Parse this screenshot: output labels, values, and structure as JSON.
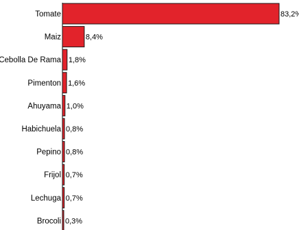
{
  "colors": {
    "bar": "#e2232b",
    "bar_stroke": "#1a1a1a",
    "axis": "#000000"
  },
  "chart_data": {
    "type": "bar",
    "orientation": "horizontal",
    "categories": [
      "Tomate",
      "Maiz",
      "Cebolla De Rama",
      "Pimenton",
      "Ahuyama",
      "Habichuela",
      "Pepino",
      "Frijol",
      "Lechuga",
      "Brocoli"
    ],
    "values": [
      83.2,
      8.4,
      1.8,
      1.6,
      1.0,
      0.8,
      0.8,
      0.7,
      0.7,
      0.3
    ],
    "value_labels": [
      "83,2%",
      "8,4%",
      "1,8%",
      "1,6%",
      "1,0%",
      "0,8%",
      "0,8%",
      "0,7%",
      "0,7%",
      "0,3%"
    ],
    "xlim": [
      0,
      83.2
    ],
    "grid": false,
    "legend": "none"
  }
}
